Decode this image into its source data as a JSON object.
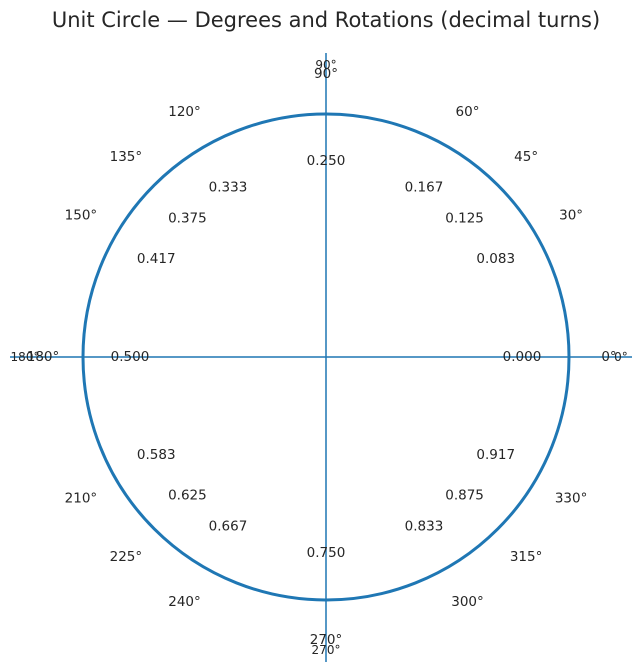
{
  "chart_data": {
    "type": "diagram",
    "title": "Unit Circle — Degrees and Rotations (decimal turns)",
    "circle_color": "#1f77b4",
    "axis_color": "#1f77b4",
    "axis_end_labels": {
      "right": "0°",
      "top": "90°",
      "left": "180°",
      "bottom": "270°"
    },
    "angles": [
      {
        "deg": 0,
        "label": "0°",
        "turns": "0.000"
      },
      {
        "deg": 30,
        "label": "30°",
        "turns": "0.083"
      },
      {
        "deg": 45,
        "label": "45°",
        "turns": "0.125"
      },
      {
        "deg": 60,
        "label": "60°",
        "turns": "0.167"
      },
      {
        "deg": 90,
        "label": "90°",
        "turns": "0.250"
      },
      {
        "deg": 120,
        "label": "120°",
        "turns": "0.333"
      },
      {
        "deg": 135,
        "label": "135°",
        "turns": "0.375"
      },
      {
        "deg": 150,
        "label": "150°",
        "turns": "0.417"
      },
      {
        "deg": 180,
        "label": "180°",
        "turns": "0.500"
      },
      {
        "deg": 210,
        "label": "210°",
        "turns": "0.583"
      },
      {
        "deg": 225,
        "label": "225°",
        "turns": "0.625"
      },
      {
        "deg": 240,
        "label": "240°",
        "turns": "0.667"
      },
      {
        "deg": 270,
        "label": "270°",
        "turns": "0.750"
      },
      {
        "deg": 300,
        "label": "300°",
        "turns": "0.833"
      },
      {
        "deg": 315,
        "label": "315°",
        "turns": "0.875"
      },
      {
        "deg": 330,
        "label": "330°",
        "turns": "0.917"
      }
    ]
  }
}
